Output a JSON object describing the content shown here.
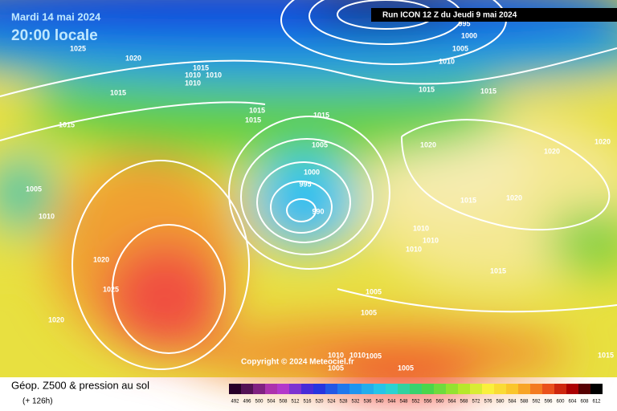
{
  "header": {
    "date": "Mardi 14 mai 2024",
    "time": "20:00 locale",
    "run": "Run ICON 12 Z du Jeudi 9 mai 2024"
  },
  "copyright": "Copyright © 2024 Meteociel.fr",
  "footer": {
    "title": "Géop. Z500 & pression au sol",
    "lead": "(+ 126h)"
  },
  "legend": [
    492,
    496,
    500,
    504,
    508,
    512,
    516,
    520,
    524,
    528,
    532,
    536,
    540,
    544,
    548,
    552,
    556,
    560,
    564,
    568,
    572,
    576,
    580,
    584,
    588,
    592,
    596,
    600,
    604,
    608,
    612
  ],
  "isobar_labels": [
    "1025",
    "1020",
    "1015",
    "1010",
    "1010",
    "1010",
    "1015",
    "1015",
    "1015",
    "1015",
    "1015",
    "1005",
    "1000",
    "995",
    "990",
    "1005",
    "1010",
    "1020",
    "1025",
    "1020",
    "995",
    "1000",
    "1005",
    "1010",
    "1015",
    "1015",
    "1020",
    "1020",
    "1020",
    "1015",
    "1020",
    "1010",
    "1010",
    "1010",
    "1015",
    "1005",
    "1005",
    "1010",
    "1010",
    "1005",
    "1005",
    "1005",
    "1015"
  ]
}
